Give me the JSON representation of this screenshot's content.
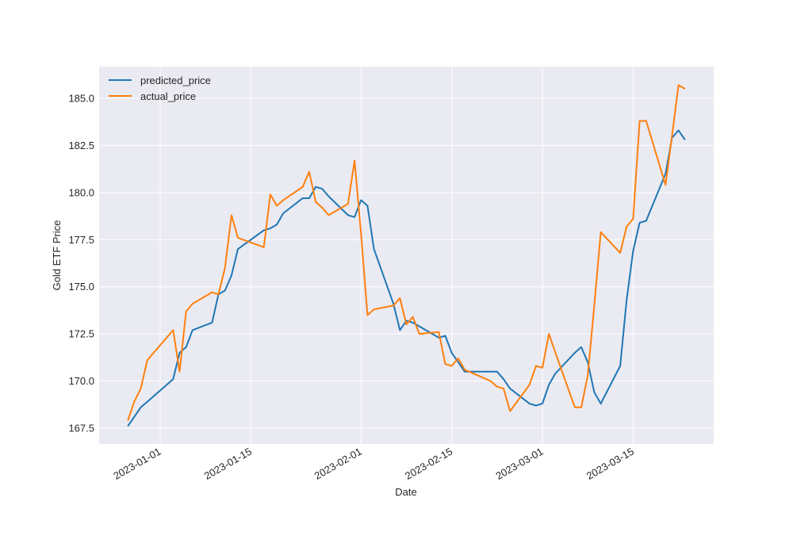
{
  "chart_data": {
    "type": "line",
    "title": "",
    "xlabel": "Date",
    "ylabel": "Gold ETF Price",
    "ylim": [
      166.8,
      186.8
    ],
    "xlim": [
      "2022-12-23",
      "2023-03-28"
    ],
    "grid": true,
    "legend_position": "upper left",
    "x_ticks": [
      "2023-01-01",
      "2023-01-15",
      "2023-02-01",
      "2023-02-15",
      "2023-03-01",
      "2023-03-15"
    ],
    "y_ticks": [
      "167.5",
      "170.0",
      "172.5",
      "175.0",
      "177.5",
      "180.0",
      "182.5",
      "185.0"
    ],
    "colors": {
      "predicted_price": "#1f77b4",
      "actual_price": "#ff7f0e",
      "background": "#eaeaf2",
      "grid": "#ffffff"
    },
    "series": [
      {
        "name": "predicted_price",
        "x": [
          "2022-12-27",
          "2022-12-28",
          "2022-12-29",
          "2022-12-30",
          "2023-01-03",
          "2023-01-04",
          "2023-01-05",
          "2023-01-06",
          "2023-01-09",
          "2023-01-10",
          "2023-01-11",
          "2023-01-12",
          "2023-01-13",
          "2023-01-17",
          "2023-01-18",
          "2023-01-19",
          "2023-01-20",
          "2023-01-23",
          "2023-01-24",
          "2023-01-25",
          "2023-01-26",
          "2023-01-27",
          "2023-01-30",
          "2023-01-31",
          "2023-02-01",
          "2023-02-02",
          "2023-02-03",
          "2023-02-06",
          "2023-02-07",
          "2023-02-08",
          "2023-02-09",
          "2023-02-10",
          "2023-02-13",
          "2023-02-14",
          "2023-02-15",
          "2023-02-16",
          "2023-02-17",
          "2023-02-21",
          "2023-02-22",
          "2023-02-23",
          "2023-02-24",
          "2023-02-27",
          "2023-02-28",
          "2023-03-01",
          "2023-03-02",
          "2023-03-03",
          "2023-03-06",
          "2023-03-07",
          "2023-03-08",
          "2023-03-09",
          "2023-03-10",
          "2023-03-13",
          "2023-03-14",
          "2023-03-15",
          "2023-03-16",
          "2023-03-17",
          "2023-03-20",
          "2023-03-21",
          "2023-03-22",
          "2023-03-23"
        ],
        "values": [
          167.6,
          168.1,
          168.6,
          168.9,
          170.1,
          171.5,
          171.8,
          172.7,
          173.1,
          174.6,
          174.8,
          175.6,
          177.0,
          178.0,
          178.1,
          178.3,
          178.9,
          179.7,
          179.7,
          180.3,
          180.2,
          179.8,
          178.8,
          178.7,
          179.6,
          179.3,
          177.0,
          174.1,
          172.7,
          173.2,
          173.1,
          172.9,
          172.3,
          172.4,
          171.5,
          171.0,
          170.5,
          170.5,
          170.5,
          170.1,
          169.6,
          168.8,
          168.7,
          168.8,
          169.8,
          170.4,
          171.5,
          171.8,
          171.0,
          169.4,
          168.8,
          170.8,
          174.3,
          176.9,
          178.4,
          178.5,
          181.0,
          182.9,
          183.3,
          182.8
        ]
      },
      {
        "name": "actual_price",
        "x": [
          "2022-12-27",
          "2022-12-28",
          "2022-12-29",
          "2022-12-30",
          "2023-01-03",
          "2023-01-04",
          "2023-01-05",
          "2023-01-06",
          "2023-01-09",
          "2023-01-10",
          "2023-01-11",
          "2023-01-12",
          "2023-01-13",
          "2023-01-17",
          "2023-01-18",
          "2023-01-19",
          "2023-01-20",
          "2023-01-23",
          "2023-01-24",
          "2023-01-25",
          "2023-01-26",
          "2023-01-27",
          "2023-01-30",
          "2023-01-31",
          "2023-02-01",
          "2023-02-02",
          "2023-02-03",
          "2023-02-06",
          "2023-02-07",
          "2023-02-08",
          "2023-02-09",
          "2023-02-10",
          "2023-02-13",
          "2023-02-14",
          "2023-02-15",
          "2023-02-16",
          "2023-02-17",
          "2023-02-21",
          "2023-02-22",
          "2023-02-23",
          "2023-02-24",
          "2023-02-27",
          "2023-02-28",
          "2023-03-01",
          "2023-03-02",
          "2023-03-03",
          "2023-03-06",
          "2023-03-07",
          "2023-03-08",
          "2023-03-09",
          "2023-03-10",
          "2023-03-13",
          "2023-03-14",
          "2023-03-15",
          "2023-03-16",
          "2023-03-17",
          "2023-03-20",
          "2023-03-21",
          "2023-03-22",
          "2023-03-23"
        ],
        "values": [
          167.9,
          168.9,
          169.6,
          171.1,
          172.7,
          170.5,
          173.7,
          174.1,
          174.7,
          174.6,
          176.0,
          178.8,
          177.6,
          177.1,
          179.9,
          179.3,
          179.6,
          180.3,
          181.1,
          179.5,
          179.2,
          178.8,
          179.4,
          181.7,
          177.8,
          173.5,
          173.8,
          174.0,
          174.4,
          173.0,
          173.4,
          172.5,
          172.6,
          170.9,
          170.8,
          171.2,
          170.6,
          170.0,
          169.7,
          169.6,
          168.4,
          169.8,
          170.8,
          170.7,
          172.5,
          171.5,
          168.6,
          168.6,
          170.3,
          174.0,
          177.9,
          176.8,
          178.2,
          178.6,
          183.8,
          183.8,
          180.4,
          183.0,
          185.7,
          185.5
        ]
      }
    ]
  },
  "legend": {
    "items": [
      {
        "label": "predicted_price",
        "color": "#1f77b4"
      },
      {
        "label": "actual_price",
        "color": "#ff7f0e"
      }
    ]
  },
  "axes": {
    "xlabel": "Date",
    "ylabel": "Gold ETF Price"
  }
}
